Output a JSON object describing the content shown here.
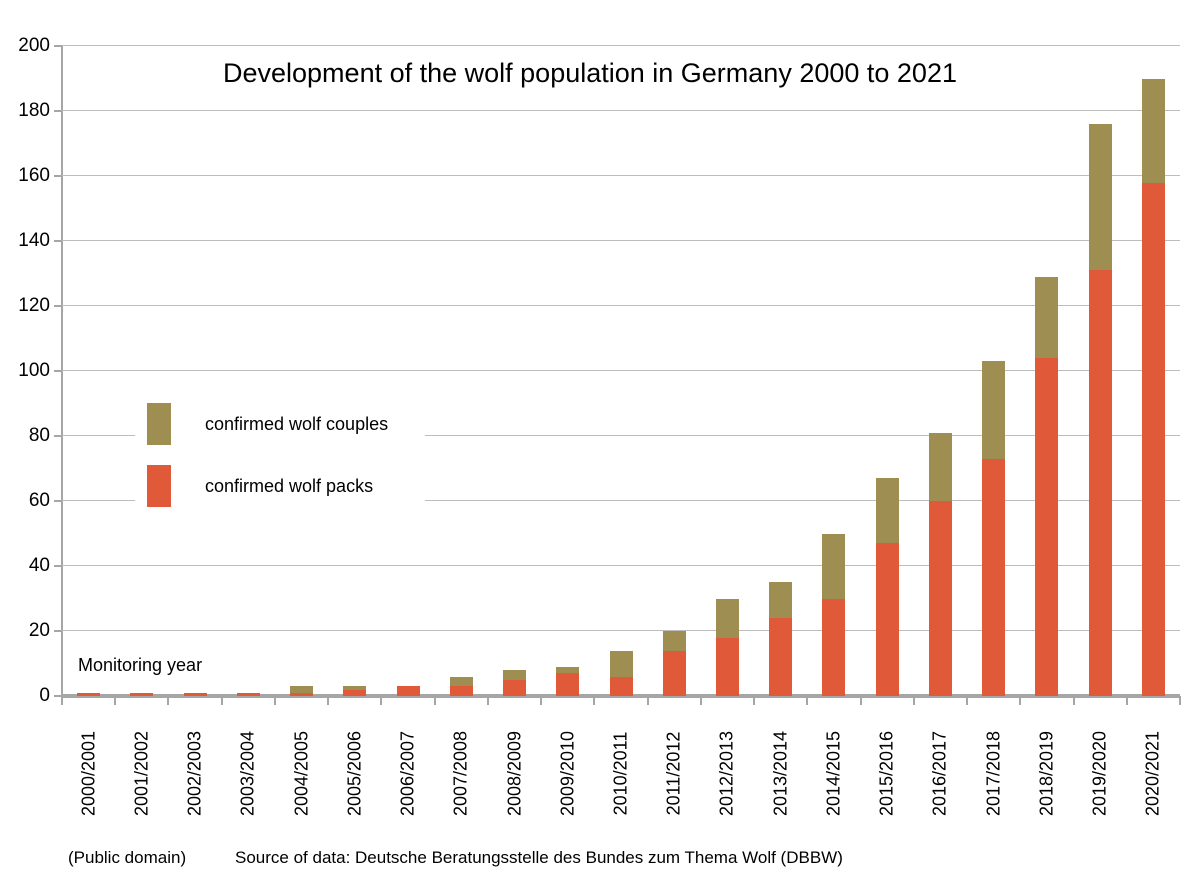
{
  "chart_data": {
    "type": "bar",
    "stacked": true,
    "title": "Development of the wolf population in Germany 2000 to 2021",
    "xlabel": "Monitoring year",
    "categories": [
      "2000/2001",
      "2001/2002",
      "2002/2003",
      "2003/2004",
      "2004/2005",
      "2005/2006",
      "2006/2007",
      "2007/2008",
      "2008/2009",
      "2009/2010",
      "2010/2011",
      "2011/2012",
      "2012/2013",
      "2013/2014",
      "2014/2015",
      "2015/2016",
      "2016/2017",
      "2017/2018",
      "2018/2019",
      "2019/2020",
      "2020/2021"
    ],
    "series": [
      {
        "name": "confirmed wolf packs",
        "color": "#e05a3a",
        "values": [
          1,
          1,
          1,
          1,
          1,
          2,
          3,
          3,
          5,
          7,
          6,
          14,
          18,
          24,
          30,
          47,
          60,
          73,
          104,
          131,
          158
        ]
      },
      {
        "name": "confirmed wolf couples",
        "color": "#9e8e51",
        "values": [
          0,
          0,
          0,
          0,
          2,
          1,
          0,
          3,
          3,
          2,
          8,
          6,
          12,
          11,
          20,
          20,
          21,
          30,
          25,
          45,
          32
        ]
      }
    ],
    "totals": [
      1,
      1,
      1,
      1,
      3,
      3,
      3,
      6,
      8,
      9,
      14,
      20,
      30,
      35,
      50,
      67,
      81,
      103,
      129,
      176,
      190
    ],
    "ylim": [
      0,
      200
    ],
    "ytick_step": 20,
    "y_tick_labels": [
      "0",
      "20",
      "40",
      "60",
      "80",
      "100",
      "120",
      "140",
      "160",
      "180",
      "200"
    ],
    "grid": "horizontal",
    "legend_position": "inside-left",
    "x_tick_rotation": 90
  },
  "legend": {
    "couples_label": "confirmed wolf couples",
    "packs_label": "confirmed wolf packs"
  },
  "footer": {
    "license": "(Public domain)",
    "source": "Source of data: Deutsche Beratungsstelle des Bundes zum Thema Wolf (DBBW)"
  },
  "colors": {
    "packs": "#e05a3a",
    "couples": "#9e8e51",
    "gridline": "#bdbdbd",
    "axis": "#a6a6a6",
    "text": "#000000"
  }
}
